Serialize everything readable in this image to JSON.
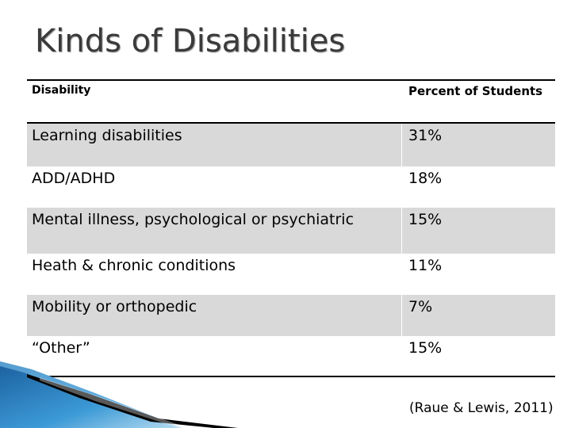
{
  "slide": {
    "title": "Kinds of Disabilities",
    "citation": "(Raue & Lewis, 2011)"
  },
  "table": {
    "headers": [
      "Disability",
      "Percent of Students"
    ],
    "rows": [
      {
        "disability": "Learning disabilities",
        "percent": "31%"
      },
      {
        "disability": "ADD/ADHD",
        "percent": "18%"
      },
      {
        "disability": "Mental illness, psychological or psychiatric",
        "percent": "15%"
      },
      {
        "disability": "Heath & chronic conditions",
        "percent": "11%"
      },
      {
        "disability": "Mobility or orthopedic",
        "percent": "7%"
      },
      {
        "disability": "“Other”",
        "percent": "15%"
      }
    ]
  },
  "colors": {
    "title": "#3a3a3a",
    "row_shade": "#d9d9d9",
    "accent_blue": "#2a7fc0"
  }
}
